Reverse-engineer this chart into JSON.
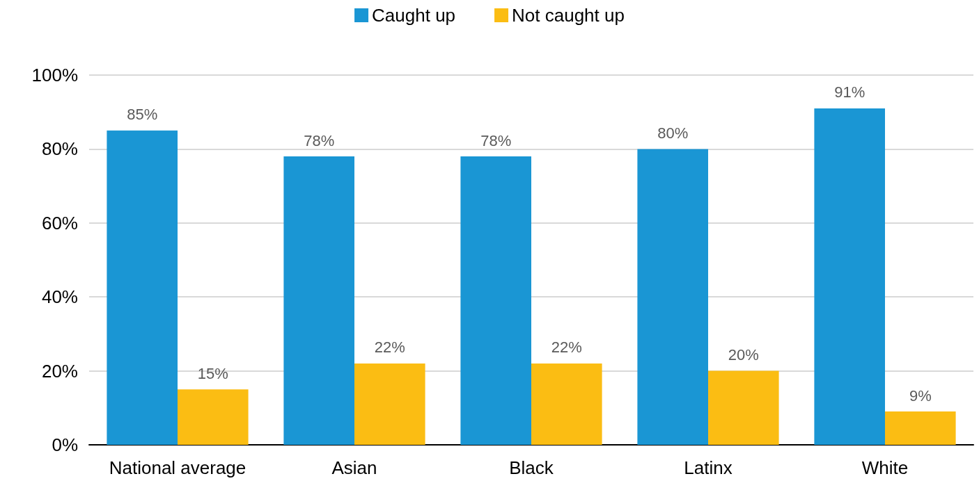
{
  "chart_data": {
    "type": "bar",
    "categories": [
      "National average",
      "Asian",
      "Black",
      "Latinx",
      "White"
    ],
    "series": [
      {
        "name": "Caught up",
        "color": "#1a96d4",
        "values": [
          85,
          78,
          78,
          80,
          91
        ],
        "value_labels": [
          "85%",
          "78%",
          "78%",
          "80%",
          "91%"
        ]
      },
      {
        "name": "Not caught up",
        "color": "#fbbd13",
        "values": [
          15,
          22,
          22,
          20,
          9
        ],
        "value_labels": [
          "15%",
          "22%",
          "22%",
          "20%",
          "9%"
        ]
      }
    ],
    "ylim": [
      0,
      100
    ],
    "yticks": [
      {
        "value": 0,
        "label": "0%"
      },
      {
        "value": 20,
        "label": "20%"
      },
      {
        "value": 40,
        "label": "40%"
      },
      {
        "value": 60,
        "label": "60%"
      },
      {
        "value": 80,
        "label": "80%"
      },
      {
        "value": 100,
        "label": "100%"
      }
    ],
    "grid": "y",
    "legend": "top"
  }
}
